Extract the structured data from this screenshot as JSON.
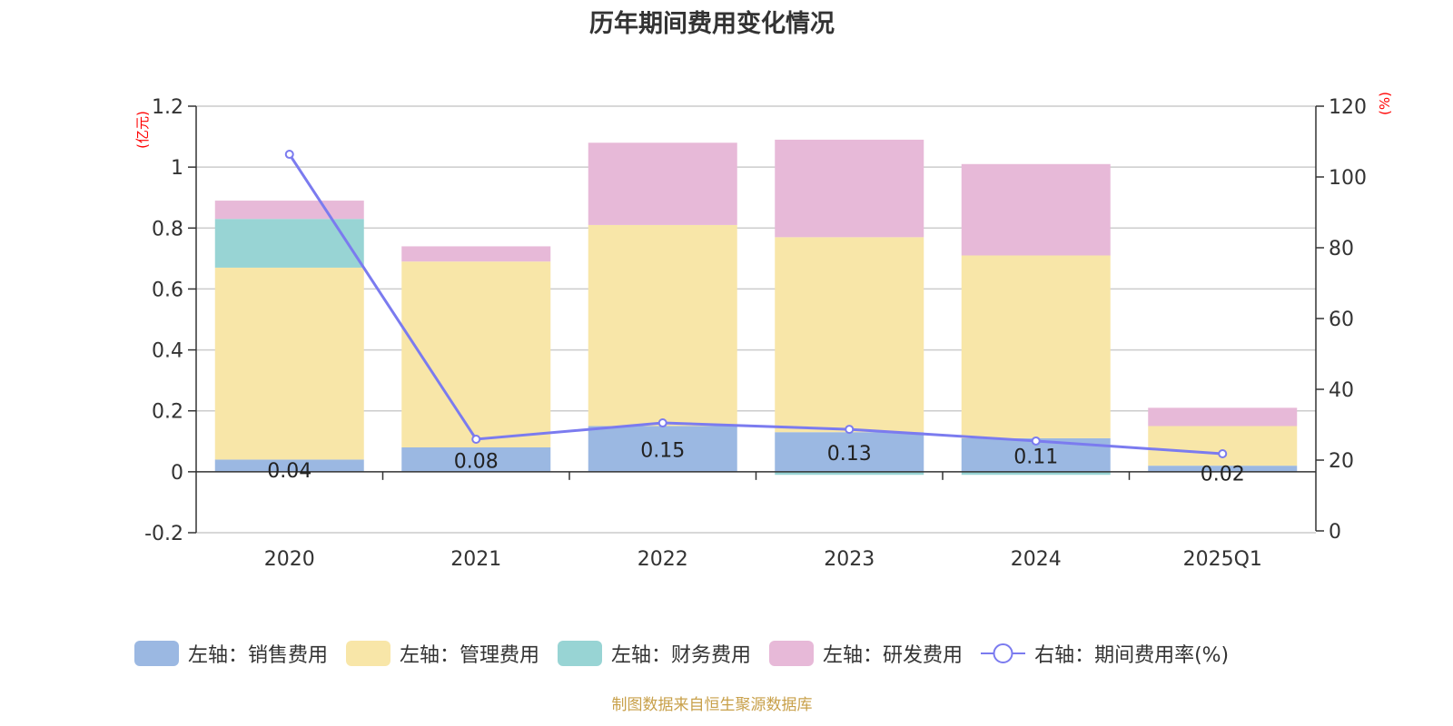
{
  "title": "历年期间费用变化情况",
  "source": "制图数据来自恒生聚源数据库",
  "colors": {
    "sales": "#9bb8e2",
    "admin": "#f8e6a8",
    "finance": "#98d4d4",
    "rd": "#e7b9d8",
    "rate": "#7b7bef",
    "axis_unit": "#ff0000",
    "grid": "#cccccc",
    "axis": "#333333"
  },
  "chart_data": {
    "type": "bar",
    "stacked": true,
    "title": "历年期间费用变化情况",
    "categories": [
      "2020",
      "2021",
      "2022",
      "2023",
      "2024",
      "2025Q1"
    ],
    "left_axis": {
      "unit": "(亿元)",
      "ylim": [
        -0.2,
        1.2
      ],
      "ticks": [
        "1.2",
        "1",
        "0.8",
        "0.6",
        "0.4",
        "0.2",
        "0",
        "-0.2"
      ],
      "tick_values": [
        1.2,
        1,
        0.8,
        0.6,
        0.4,
        0.2,
        0,
        -0.2
      ]
    },
    "right_axis": {
      "unit": "(%)",
      "ylim": [
        0,
        120
      ],
      "ticks": [
        "120",
        "100",
        "80",
        "60",
        "40",
        "20",
        "0"
      ],
      "tick_values": [
        120,
        100,
        80,
        60,
        40,
        20,
        0
      ]
    },
    "series": [
      {
        "key": "sales",
        "name": "左轴：销售费用",
        "axis": "left",
        "values": [
          0.04,
          0.08,
          0.15,
          0.13,
          0.11,
          0.02
        ],
        "labels": [
          "0.04",
          "0.08",
          "0.15",
          "0.13",
          "0.11",
          "0.02"
        ]
      },
      {
        "key": "admin",
        "name": "左轴：管理费用",
        "axis": "left",
        "values": [
          0.63,
          0.61,
          0.66,
          0.64,
          0.6,
          0.13
        ]
      },
      {
        "key": "finance",
        "name": "左轴：财务费用",
        "axis": "left",
        "values": [
          0.16,
          0.0,
          0.0,
          -0.01,
          -0.01,
          0.0
        ]
      },
      {
        "key": "rd",
        "name": "左轴：研发费用",
        "axis": "left",
        "values": [
          0.06,
          0.05,
          0.27,
          0.32,
          0.3,
          0.06
        ]
      },
      {
        "key": "rate",
        "name": "右轴：期间费用率(%)",
        "axis": "right",
        "type": "line",
        "values": [
          106.4,
          25.9,
          30.5,
          28.7,
          25.4,
          21.8
        ]
      }
    ],
    "grid": true,
    "legend_position": "bottom"
  }
}
